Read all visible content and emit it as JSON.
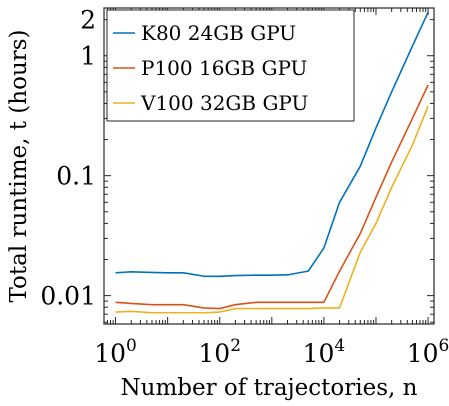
{
  "chart_data": {
    "type": "line",
    "title": "",
    "xlabel": "Number of trajectories, n",
    "ylabel": "Total runtime, t (hours)",
    "xscale": "log",
    "yscale": "log",
    "xlim": [
      0.6,
      1300000
    ],
    "ylim": [
      0.0058,
      2.5
    ],
    "xticks": [
      {
        "value": 1,
        "base": "10",
        "exp": "0"
      },
      {
        "value": 100,
        "base": "10",
        "exp": "2"
      },
      {
        "value": 10000,
        "base": "10",
        "exp": "4"
      },
      {
        "value": 1000000,
        "base": "10",
        "exp": "6"
      }
    ],
    "yticks": [
      {
        "value": 0.01,
        "label": "0.01"
      },
      {
        "value": 0.1,
        "label": "0.1"
      },
      {
        "value": 1,
        "label": "1"
      },
      {
        "value": 2,
        "label": "2"
      }
    ],
    "grid": false,
    "legend": "top-left",
    "series": [
      {
        "name": "K80 24GB GPU",
        "color": "#0072BD",
        "x": [
          1,
          2,
          5,
          10,
          20,
          50,
          100,
          200,
          500,
          1000,
          2000,
          5000,
          10000,
          20000,
          50000,
          100000,
          200000,
          500000,
          1000000
        ],
        "y": [
          0.0155,
          0.0158,
          0.0156,
          0.0155,
          0.0155,
          0.0145,
          0.0145,
          0.0147,
          0.0148,
          0.0148,
          0.0149,
          0.016,
          0.025,
          0.06,
          0.12,
          0.25,
          0.5,
          1.2,
          2.3
        ]
      },
      {
        "name": "P100 16GB GPU",
        "color": "#D95319",
        "x": [
          1,
          2,
          5,
          10,
          20,
          50,
          100,
          200,
          500,
          1000,
          2000,
          5000,
          10000,
          20000,
          50000,
          100000,
          200000,
          500000,
          1000000
        ],
        "y": [
          0.0088,
          0.0086,
          0.0084,
          0.0084,
          0.0084,
          0.0079,
          0.0078,
          0.0084,
          0.0088,
          0.0088,
          0.0088,
          0.0088,
          0.0088,
          0.016,
          0.033,
          0.066,
          0.13,
          0.3,
          0.57
        ]
      },
      {
        "name": "V100 32GB GPU",
        "color": "#EDB120",
        "x": [
          1,
          2,
          5,
          10,
          20,
          50,
          100,
          200,
          500,
          1000,
          2000,
          5000,
          10000,
          20000,
          50000,
          100000,
          200000,
          500000,
          1000000
        ],
        "y": [
          0.0073,
          0.0074,
          0.0072,
          0.0072,
          0.0072,
          0.0072,
          0.0073,
          0.0078,
          0.0078,
          0.0078,
          0.0078,
          0.0078,
          0.0079,
          0.0079,
          0.023,
          0.04,
          0.08,
          0.18,
          0.38
        ]
      }
    ]
  }
}
